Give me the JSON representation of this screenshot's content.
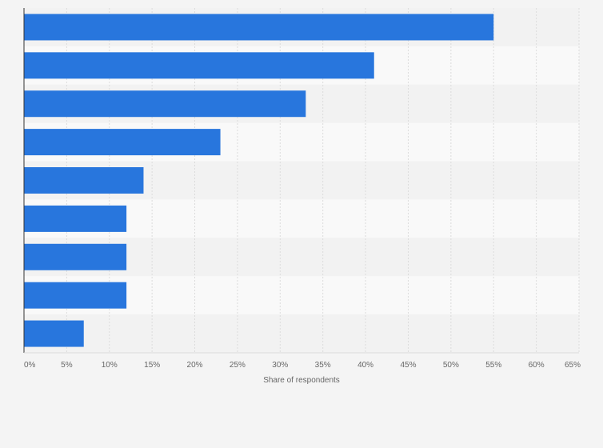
{
  "colors": {
    "background": "#f4f4f4",
    "band_light": "#f9f9f9",
    "band_dark": "#f2f2f2",
    "bar": "#2876dd",
    "grid": "#dcdcdc",
    "axis": "#333333",
    "text": "#666666"
  },
  "chart_data": {
    "type": "bar",
    "orientation": "horizontal",
    "title": "",
    "xlabel": "Share of respondents",
    "ylabel": "",
    "categories": [
      "",
      "",
      "",
      "",
      "",
      "",
      "",
      "",
      ""
    ],
    "values": [
      55,
      41,
      33,
      23,
      14,
      12,
      12,
      12,
      7
    ],
    "xlim": [
      0,
      65
    ],
    "ticks": [
      0,
      5,
      10,
      15,
      20,
      25,
      30,
      35,
      40,
      45,
      50,
      55,
      60,
      65
    ],
    "tick_labels": [
      "0%",
      "5%",
      "10%",
      "15%",
      "20%",
      "25%",
      "30%",
      "35%",
      "40%",
      "45%",
      "50%",
      "55%",
      "60%",
      "65%"
    ],
    "grid": true
  }
}
